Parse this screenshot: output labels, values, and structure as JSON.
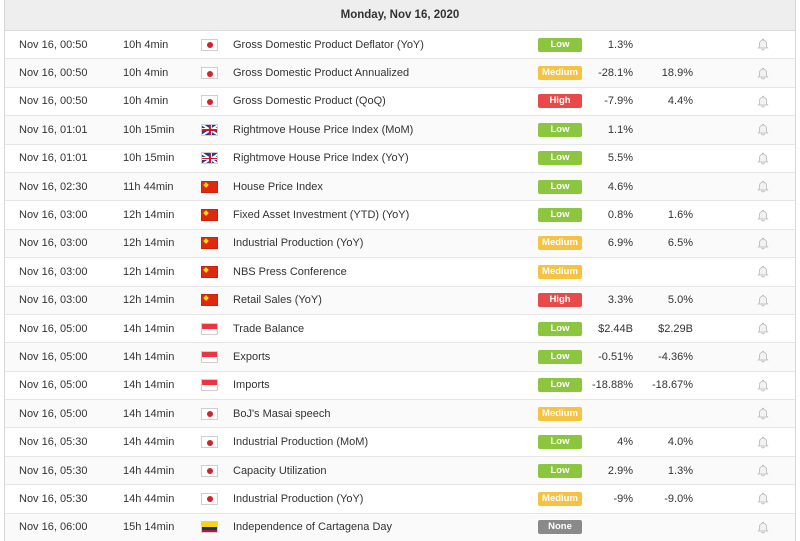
{
  "header": {
    "date": "Monday, Nov 16, 2020"
  },
  "colors": {
    "low": "#8cc63f",
    "medium": "#f5c242",
    "high": "#e84a4a",
    "none": "#8a8a8a"
  },
  "icons": {
    "bell": "bell-icon"
  },
  "events": [
    {
      "date": "Nov 16, 00:50",
      "until": "10h 4min",
      "flag": "jp",
      "event": "Gross Domestic Product Deflator (YoY)",
      "importance": "Low",
      "level": "low",
      "actual": "1.3%",
      "previous": ""
    },
    {
      "date": "Nov 16, 00:50",
      "until": "10h 4min",
      "flag": "jp",
      "event": "Gross Domestic Product Annualized",
      "importance": "Medium",
      "level": "medium",
      "actual": "-28.1%",
      "previous": "18.9%"
    },
    {
      "date": "Nov 16, 00:50",
      "until": "10h 4min",
      "flag": "jp",
      "event": "Gross Domestic Product (QoQ)",
      "importance": "High",
      "level": "high",
      "actual": "-7.9%",
      "previous": "4.4%"
    },
    {
      "date": "Nov 16, 01:01",
      "until": "10h 15min",
      "flag": "gb",
      "event": "Rightmove House Price Index (MoM)",
      "importance": "Low",
      "level": "low",
      "actual": "1.1%",
      "previous": ""
    },
    {
      "date": "Nov 16, 01:01",
      "until": "10h 15min",
      "flag": "gb",
      "event": "Rightmove House Price Index (YoY)",
      "importance": "Low",
      "level": "low",
      "actual": "5.5%",
      "previous": ""
    },
    {
      "date": "Nov 16, 02:30",
      "until": "11h 44min",
      "flag": "cn",
      "event": "House Price Index",
      "importance": "Low",
      "level": "low",
      "actual": "4.6%",
      "previous": ""
    },
    {
      "date": "Nov 16, 03:00",
      "until": "12h 14min",
      "flag": "cn",
      "event": "Fixed Asset Investment (YTD) (YoY)",
      "importance": "Low",
      "level": "low",
      "actual": "0.8%",
      "previous": "1.6%"
    },
    {
      "date": "Nov 16, 03:00",
      "until": "12h 14min",
      "flag": "cn",
      "event": "Industrial Production (YoY)",
      "importance": "Medium",
      "level": "medium",
      "actual": "6.9%",
      "previous": "6.5%"
    },
    {
      "date": "Nov 16, 03:00",
      "until": "12h 14min",
      "flag": "cn",
      "event": "NBS Press Conference",
      "importance": "Medium",
      "level": "medium",
      "actual": "",
      "previous": ""
    },
    {
      "date": "Nov 16, 03:00",
      "until": "12h 14min",
      "flag": "cn",
      "event": "Retail Sales (YoY)",
      "importance": "High",
      "level": "high",
      "actual": "3.3%",
      "previous": "5.0%"
    },
    {
      "date": "Nov 16, 05:00",
      "until": "14h 14min",
      "flag": "sg",
      "event": "Trade Balance",
      "importance": "Low",
      "level": "low",
      "actual": "$2.44B",
      "previous": "$2.29B"
    },
    {
      "date": "Nov 16, 05:00",
      "until": "14h 14min",
      "flag": "sg",
      "event": "Exports",
      "importance": "Low",
      "level": "low",
      "actual": "-0.51%",
      "previous": "-4.36%"
    },
    {
      "date": "Nov 16, 05:00",
      "until": "14h 14min",
      "flag": "sg",
      "event": "Imports",
      "importance": "Low",
      "level": "low",
      "actual": "-18.88%",
      "previous": "-18.67%"
    },
    {
      "date": "Nov 16, 05:00",
      "until": "14h 14min",
      "flag": "jp",
      "event": "BoJ's Masai speech",
      "importance": "Medium",
      "level": "medium",
      "actual": "",
      "previous": ""
    },
    {
      "date": "Nov 16, 05:30",
      "until": "14h 44min",
      "flag": "jp",
      "event": "Industrial Production (MoM)",
      "importance": "Low",
      "level": "low",
      "actual": "4%",
      "previous": "4.0%"
    },
    {
      "date": "Nov 16, 05:30",
      "until": "14h 44min",
      "flag": "jp",
      "event": "Capacity Utilization",
      "importance": "Low",
      "level": "low",
      "actual": "2.9%",
      "previous": "1.3%"
    },
    {
      "date": "Nov 16, 05:30",
      "until": "14h 44min",
      "flag": "jp",
      "event": "Industrial Production (YoY)",
      "importance": "Medium",
      "level": "medium",
      "actual": "-9%",
      "previous": "-9.0%"
    },
    {
      "date": "Nov 16, 06:00",
      "until": "15h 14min",
      "flag": "co",
      "event": "Independence of Cartagena Day",
      "importance": "None",
      "level": "none",
      "actual": "",
      "previous": ""
    }
  ]
}
